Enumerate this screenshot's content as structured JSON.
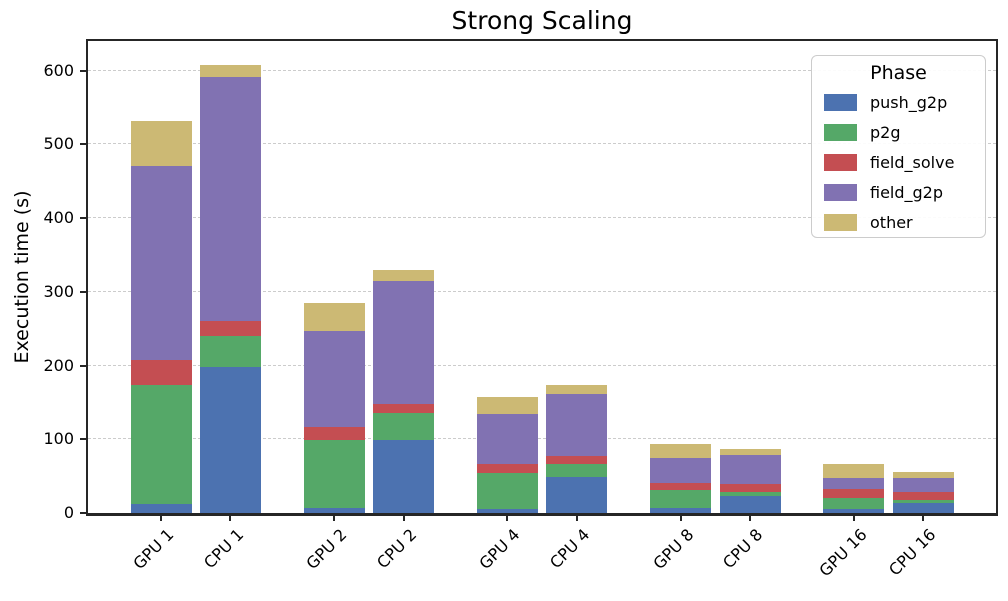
{
  "chart_data": {
    "type": "bar",
    "stacked": true,
    "title": "Strong Scaling",
    "xlabel": "",
    "ylabel": "Execution time (s)",
    "categories": [
      "GPU 1",
      "CPU 1",
      "GPU 2",
      "CPU 2",
      "GPU 4",
      "CPU 4",
      "GPU 8",
      "CPU 8",
      "GPU 16",
      "CPU 16"
    ],
    "series": [
      {
        "name": "push_g2p",
        "color": "#4C72B0",
        "values": [
          12,
          198,
          7,
          99,
          5,
          49,
          7,
          23,
          5,
          13
        ]
      },
      {
        "name": "p2g",
        "color": "#55A868",
        "values": [
          162,
          42,
          92,
          36,
          49,
          17,
          24,
          6,
          15,
          5
        ]
      },
      {
        "name": "field_solve",
        "color": "#C44E52",
        "values": [
          34,
          21,
          18,
          13,
          12,
          11,
          10,
          10,
          12,
          11
        ]
      },
      {
        "name": "field_g2p",
        "color": "#8172B2",
        "values": [
          262,
          330,
          130,
          167,
          68,
          84,
          33,
          40,
          16,
          18
        ]
      },
      {
        "name": "other",
        "color": "#CCB974",
        "values": [
          62,
          17,
          38,
          15,
          23,
          12,
          19,
          8,
          18,
          8
        ]
      }
    ],
    "totals": [
      532,
      608,
      285,
      330,
      157,
      173,
      93,
      87,
      66,
      55
    ],
    "ylim": [
      0,
      640
    ],
    "yticks": [
      0,
      100,
      200,
      300,
      400,
      500,
      600
    ],
    "grid": "horizontal-dashed",
    "grid_color": "#cccccc",
    "spine_color": "#262626",
    "legend": {
      "title": "Phase",
      "position": "upper-right",
      "entries": [
        "push_g2p",
        "p2g",
        "field_solve",
        "field_g2p",
        "other"
      ]
    }
  }
}
